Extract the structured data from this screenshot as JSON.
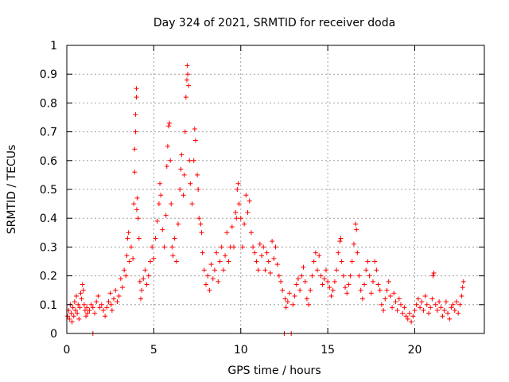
{
  "chart_data": {
    "type": "scatter",
    "title": "Day 324 of 2021, SRMTID for receiver doda",
    "xlabel": "GPS time / hours",
    "ylabel": "SRMTID / TECUs",
    "xlim": [
      0,
      24
    ],
    "ylim": [
      0,
      1
    ],
    "xticks": [
      0,
      5,
      10,
      15,
      20
    ],
    "xtick_labels": [
      "0",
      "5",
      "10",
      "15",
      "20"
    ],
    "yticks": [
      0,
      0.1,
      0.2,
      0.3,
      0.4,
      0.5,
      0.6,
      0.7,
      0.8,
      0.9,
      1
    ],
    "ytick_labels": [
      "0",
      "0.1",
      "0.2",
      "0.3",
      "0.4",
      "0.5",
      "0.6",
      "0.7",
      "0.8",
      "0.9",
      "1"
    ],
    "grid": true,
    "marker": "+",
    "color": "#ff0000",
    "series": [
      {
        "name": "doda",
        "points": [
          [
            0.05,
            0.06
          ],
          [
            0.1,
            0.08
          ],
          [
            0.15,
            0.05
          ],
          [
            0.2,
            0.1
          ],
          [
            0.25,
            0.07
          ],
          [
            0.3,
            0.04
          ],
          [
            0.35,
            0.09
          ],
          [
            0.4,
            0.06
          ],
          [
            0.45,
            0.11
          ],
          [
            0.5,
            0.08
          ],
          [
            0.55,
            0.13
          ],
          [
            0.6,
            0.07
          ],
          [
            0.65,
            0.1
          ],
          [
            0.7,
            0.05
          ],
          [
            0.75,
            0.09
          ],
          [
            0.8,
            0.14
          ],
          [
            0.85,
            0.12
          ],
          [
            0.9,
            0.17
          ],
          [
            0.95,
            0.15
          ],
          [
            1.0,
            0.1
          ],
          [
            1.05,
            0.08
          ],
          [
            1.1,
            0.06
          ],
          [
            1.15,
            0.09
          ],
          [
            1.2,
            0.07
          ],
          [
            1.3,
            0.08
          ],
          [
            1.4,
            0.1
          ],
          [
            1.5,
            0.09
          ],
          [
            1.5,
            0.0
          ],
          [
            1.6,
            0.07
          ],
          [
            1.7,
            0.11
          ],
          [
            1.8,
            0.13
          ],
          [
            1.9,
            0.09
          ],
          [
            2.0,
            0.1
          ],
          [
            2.1,
            0.08
          ],
          [
            2.2,
            0.06
          ],
          [
            2.3,
            0.09
          ],
          [
            2.4,
            0.11
          ],
          [
            2.5,
            0.14
          ],
          [
            2.55,
            0.1
          ],
          [
            2.6,
            0.08
          ],
          [
            2.7,
            0.12
          ],
          [
            2.8,
            0.15
          ],
          [
            2.9,
            0.11
          ],
          [
            3.0,
            0.13
          ],
          [
            3.1,
            0.19
          ],
          [
            3.2,
            0.16
          ],
          [
            3.3,
            0.22
          ],
          [
            3.4,
            0.2
          ],
          [
            3.45,
            0.27
          ],
          [
            3.5,
            0.33
          ],
          [
            3.55,
            0.35
          ],
          [
            3.6,
            0.25
          ],
          [
            3.7,
            0.3
          ],
          [
            3.8,
            0.26
          ],
          [
            3.85,
            0.45
          ],
          [
            3.9,
            0.56
          ],
          [
            3.9,
            0.64
          ],
          [
            3.95,
            0.7
          ],
          [
            3.95,
            0.76
          ],
          [
            4.0,
            0.82
          ],
          [
            4.0,
            0.85
          ],
          [
            4.02,
            0.43
          ],
          [
            4.05,
            0.47
          ],
          [
            4.1,
            0.4
          ],
          [
            4.15,
            0.33
          ],
          [
            4.2,
            0.18
          ],
          [
            4.25,
            0.12
          ],
          [
            4.3,
            0.15
          ],
          [
            4.4,
            0.19
          ],
          [
            4.5,
            0.22
          ],
          [
            4.6,
            0.17
          ],
          [
            4.7,
            0.2
          ],
          [
            4.8,
            0.25
          ],
          [
            4.9,
            0.3
          ],
          [
            5.0,
            0.26
          ],
          [
            5.1,
            0.33
          ],
          [
            5.2,
            0.39
          ],
          [
            5.3,
            0.45
          ],
          [
            5.35,
            0.52
          ],
          [
            5.4,
            0.48
          ],
          [
            5.5,
            0.36
          ],
          [
            5.6,
            0.3
          ],
          [
            5.7,
            0.41
          ],
          [
            5.75,
            0.58
          ],
          [
            5.8,
            0.65
          ],
          [
            5.85,
            0.72
          ],
          [
            5.9,
            0.73
          ],
          [
            5.95,
            0.6
          ],
          [
            6.0,
            0.45
          ],
          [
            6.05,
            0.3
          ],
          [
            6.1,
            0.27
          ],
          [
            6.2,
            0.33
          ],
          [
            6.3,
            0.25
          ],
          [
            6.4,
            0.38
          ],
          [
            6.5,
            0.5
          ],
          [
            6.55,
            0.57
          ],
          [
            6.6,
            0.62
          ],
          [
            6.7,
            0.48
          ],
          [
            6.75,
            0.55
          ],
          [
            6.8,
            0.7
          ],
          [
            6.85,
            0.82
          ],
          [
            6.9,
            0.88
          ],
          [
            6.92,
            0.93
          ],
          [
            6.95,
            0.9
          ],
          [
            7.0,
            0.86
          ],
          [
            7.05,
            0.6
          ],
          [
            7.1,
            0.52
          ],
          [
            7.2,
            0.45
          ],
          [
            7.3,
            0.6
          ],
          [
            7.35,
            0.71
          ],
          [
            7.4,
            0.67
          ],
          [
            7.5,
            0.55
          ],
          [
            7.55,
            0.5
          ],
          [
            7.6,
            0.4
          ],
          [
            7.7,
            0.38
          ],
          [
            7.75,
            0.35
          ],
          [
            7.8,
            0.28
          ],
          [
            7.9,
            0.22
          ],
          [
            8.0,
            0.17
          ],
          [
            8.1,
            0.2
          ],
          [
            8.2,
            0.15
          ],
          [
            8.3,
            0.24
          ],
          [
            8.4,
            0.19
          ],
          [
            8.5,
            0.22
          ],
          [
            8.6,
            0.28
          ],
          [
            8.7,
            0.18
          ],
          [
            8.8,
            0.25
          ],
          [
            8.9,
            0.3
          ],
          [
            9.0,
            0.22
          ],
          [
            9.1,
            0.27
          ],
          [
            9.2,
            0.35
          ],
          [
            9.3,
            0.25
          ],
          [
            9.4,
            0.3
          ],
          [
            9.5,
            0.37
          ],
          [
            9.6,
            0.3
          ],
          [
            9.7,
            0.42
          ],
          [
            9.75,
            0.4
          ],
          [
            9.8,
            0.5
          ],
          [
            9.85,
            0.52
          ],
          [
            9.9,
            0.45
          ],
          [
            10.0,
            0.4
          ],
          [
            10.1,
            0.3
          ],
          [
            10.2,
            0.38
          ],
          [
            10.3,
            0.48
          ],
          [
            10.4,
            0.42
          ],
          [
            10.5,
            0.46
          ],
          [
            10.6,
            0.35
          ],
          [
            10.7,
            0.3
          ],
          [
            10.8,
            0.28
          ],
          [
            10.9,
            0.25
          ],
          [
            11.0,
            0.22
          ],
          [
            11.1,
            0.31
          ],
          [
            11.2,
            0.27
          ],
          [
            11.3,
            0.3
          ],
          [
            11.4,
            0.22
          ],
          [
            11.5,
            0.28
          ],
          [
            11.6,
            0.25
          ],
          [
            11.7,
            0.21
          ],
          [
            11.8,
            0.32
          ],
          [
            11.9,
            0.26
          ],
          [
            12.0,
            0.3
          ],
          [
            12.1,
            0.24
          ],
          [
            12.2,
            0.2
          ],
          [
            12.3,
            0.18
          ],
          [
            12.4,
            0.15
          ],
          [
            12.5,
            0.0
          ],
          [
            12.55,
            0.12
          ],
          [
            12.6,
            0.09
          ],
          [
            12.7,
            0.11
          ],
          [
            12.8,
            0.14
          ],
          [
            12.9,
            0.0
          ],
          [
            13.0,
            0.1
          ],
          [
            13.1,
            0.13
          ],
          [
            13.2,
            0.17
          ],
          [
            13.3,
            0.19
          ],
          [
            13.4,
            0.15
          ],
          [
            13.5,
            0.2
          ],
          [
            13.6,
            0.23
          ],
          [
            13.7,
            0.18
          ],
          [
            13.8,
            0.12
          ],
          [
            13.9,
            0.1
          ],
          [
            14.0,
            0.15
          ],
          [
            14.1,
            0.2
          ],
          [
            14.2,
            0.25
          ],
          [
            14.3,
            0.28
          ],
          [
            14.4,
            0.22
          ],
          [
            14.5,
            0.27
          ],
          [
            14.6,
            0.2
          ],
          [
            14.7,
            0.17
          ],
          [
            14.8,
            0.19
          ],
          [
            14.9,
            0.22
          ],
          [
            15.0,
            0.18
          ],
          [
            15.1,
            0.16
          ],
          [
            15.2,
            0.13
          ],
          [
            15.3,
            0.15
          ],
          [
            15.4,
            0.18
          ],
          [
            15.5,
            0.22
          ],
          [
            15.6,
            0.28
          ],
          [
            15.7,
            0.32
          ],
          [
            15.75,
            0.33
          ],
          [
            15.8,
            0.25
          ],
          [
            15.9,
            0.2
          ],
          [
            16.0,
            0.16
          ],
          [
            16.1,
            0.14
          ],
          [
            16.2,
            0.17
          ],
          [
            16.3,
            0.2
          ],
          [
            16.4,
            0.25
          ],
          [
            16.5,
            0.31
          ],
          [
            16.6,
            0.38
          ],
          [
            16.65,
            0.36
          ],
          [
            16.7,
            0.28
          ],
          [
            16.8,
            0.2
          ],
          [
            16.9,
            0.15
          ],
          [
            17.0,
            0.12
          ],
          [
            17.1,
            0.17
          ],
          [
            17.2,
            0.22
          ],
          [
            17.3,
            0.25
          ],
          [
            17.4,
            0.2
          ],
          [
            17.5,
            0.14
          ],
          [
            17.6,
            0.18
          ],
          [
            17.7,
            0.25
          ],
          [
            17.8,
            0.22
          ],
          [
            17.9,
            0.17
          ],
          [
            18.0,
            0.15
          ],
          [
            18.1,
            0.1
          ],
          [
            18.2,
            0.08
          ],
          [
            18.3,
            0.12
          ],
          [
            18.4,
            0.15
          ],
          [
            18.5,
            0.18
          ],
          [
            18.6,
            0.13
          ],
          [
            18.7,
            0.09
          ],
          [
            18.8,
            0.14
          ],
          [
            18.9,
            0.11
          ],
          [
            19.0,
            0.08
          ],
          [
            19.1,
            0.12
          ],
          [
            19.2,
            0.1
          ],
          [
            19.3,
            0.07
          ],
          [
            19.4,
            0.09
          ],
          [
            19.5,
            0.06
          ],
          [
            19.6,
            0.05
          ],
          [
            19.7,
            0.07
          ],
          [
            19.8,
            0.04
          ],
          [
            19.9,
            0.06
          ],
          [
            20.0,
            0.08
          ],
          [
            20.1,
            0.1
          ],
          [
            20.2,
            0.12
          ],
          [
            20.3,
            0.09
          ],
          [
            20.4,
            0.11
          ],
          [
            20.5,
            0.08
          ],
          [
            20.6,
            0.13
          ],
          [
            20.7,
            0.1
          ],
          [
            20.8,
            0.07
          ],
          [
            20.9,
            0.09
          ],
          [
            21.0,
            0.12
          ],
          [
            21.05,
            0.2
          ],
          [
            21.1,
            0.21
          ],
          [
            21.2,
            0.1
          ],
          [
            21.3,
            0.08
          ],
          [
            21.4,
            0.11
          ],
          [
            21.5,
            0.09
          ],
          [
            21.6,
            0.06
          ],
          [
            21.7,
            0.08
          ],
          [
            21.8,
            0.11
          ],
          [
            21.9,
            0.07
          ],
          [
            22.0,
            0.05
          ],
          [
            22.1,
            0.09
          ],
          [
            22.2,
            0.1
          ],
          [
            22.3,
            0.08
          ],
          [
            22.4,
            0.11
          ],
          [
            22.5,
            0.07
          ],
          [
            22.6,
            0.1
          ],
          [
            22.7,
            0.13
          ],
          [
            22.75,
            0.16
          ],
          [
            22.8,
            0.18
          ]
        ]
      }
    ]
  }
}
